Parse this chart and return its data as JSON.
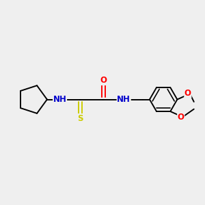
{
  "bg_color": "#efefef",
  "atom_colors": {
    "C": "#000000",
    "N": "#0000cc",
    "NH": "#0000cc",
    "O": "#ff0000",
    "S": "#cccc00"
  },
  "bond_color": "#000000",
  "figsize": [
    3.0,
    3.0
  ],
  "dpi": 100,
  "lw": 1.4,
  "fs": 8.5
}
